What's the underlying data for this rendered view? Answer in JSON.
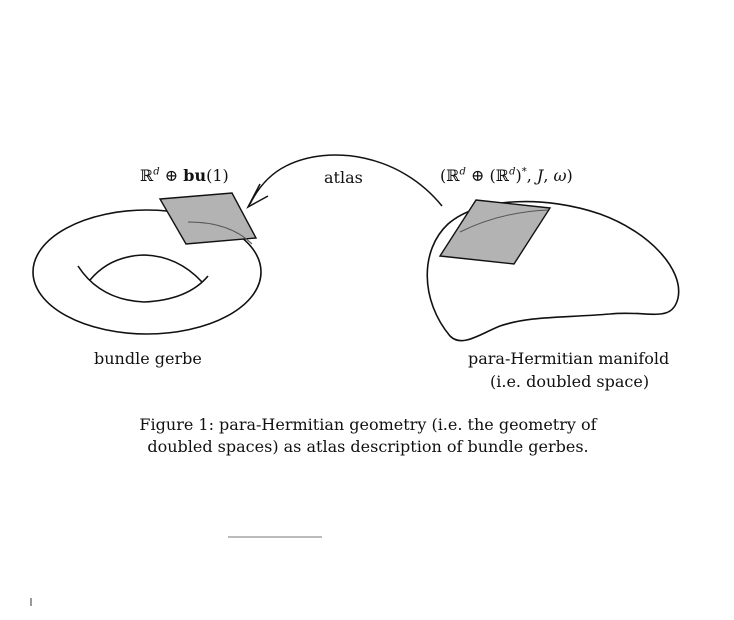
{
  "left_label": {
    "symbol": "ℝ",
    "superscript": "d",
    "oplus": " ⊕ ",
    "bold": "bu",
    "tail": "(1)"
  },
  "arrow_label": "atlas",
  "right_label": {
    "open": "(ℝ",
    "sup1": "d",
    "mid": " ⊕ (ℝ",
    "sup2": "d",
    "close": ")",
    "star": "*",
    "comma": ", ",
    "J": "J",
    "comma2": ", ",
    "omega": "ω",
    "end": ")"
  },
  "left_name": "bundle gerbe",
  "right_name_line1": "para-Hermitian manifold",
  "right_name_line2": "(i.e. doubled space)",
  "caption_line1": "Figure 1: para-Hermitian geometry (i.e. the geometry of",
  "caption_line2": "doubled spaces) as atlas description of bundle gerbes."
}
